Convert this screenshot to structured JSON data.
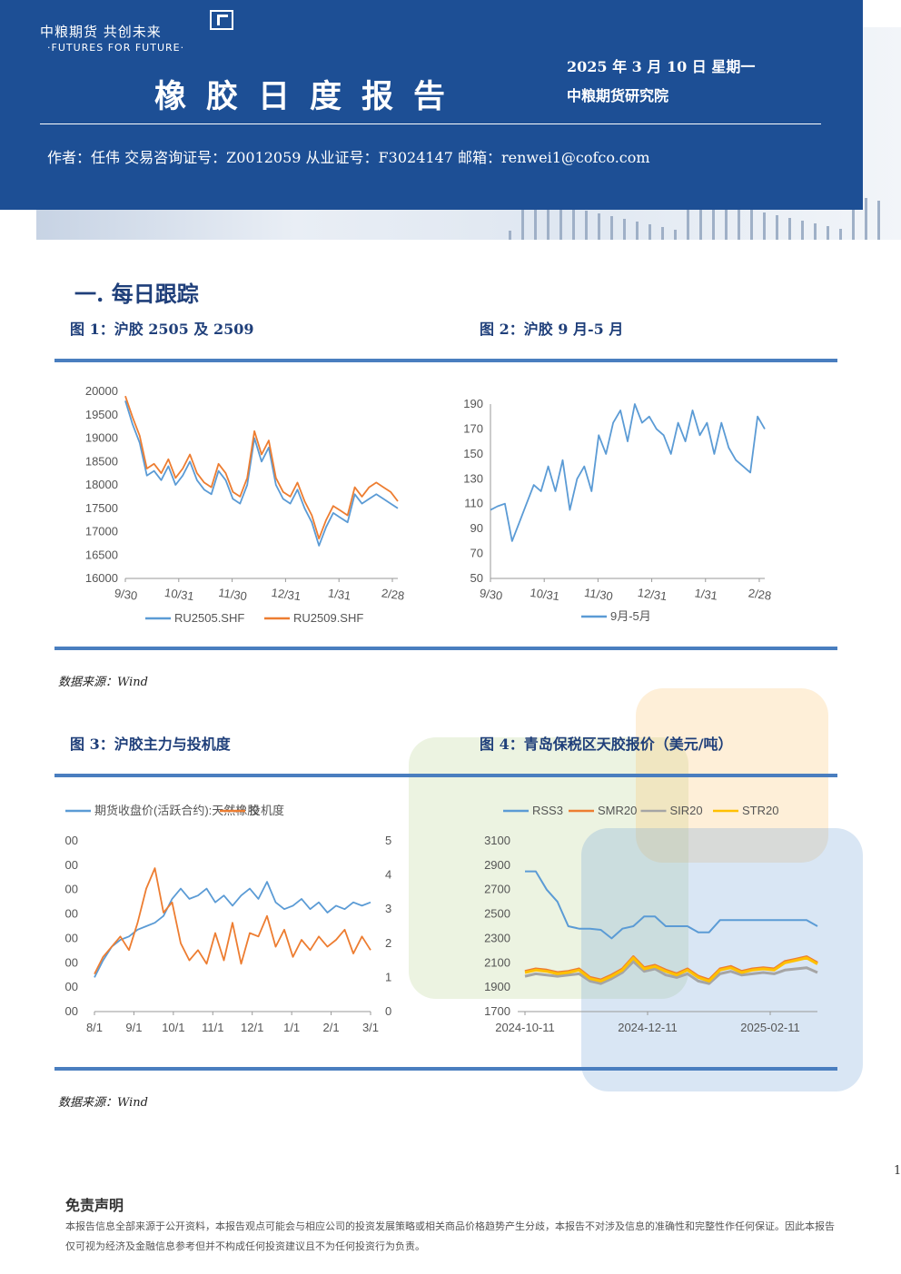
{
  "header": {
    "logo_text": "中粮期货 共创未来",
    "logo_sub": "·FUTURES FOR FUTURE·",
    "title": "橡胶日度报告",
    "date": "2025 年 3 月 10 日 星期一",
    "institute": "中粮期货研究院",
    "author_line": "作者：任伟  交易咨询证号：Z0012059  从业证号：F3024147  邮箱：renwei1@cofco.com"
  },
  "section_title": "一. 每日跟踪",
  "figures": {
    "fig1_title": "图 1：沪胶 2505 及 2509",
    "fig2_title": "图 2：沪胶 9 月-5 月",
    "fig3_title": "图 3：沪胶主力与投机度",
    "fig4_title": "图 4：青岛保税区天胶报价（美元/吨）",
    "source1": "数据来源：Wind",
    "source2": "数据来源：Wind"
  },
  "footer": {
    "page_number": "1",
    "disclaimer_title": "免责声明",
    "disclaimer_text": "本报告信息全部来源于公开资料，本报告观点可能会与相应公司的投资发展策略或相关商品价格趋势产生分歧，本报告不对涉及信息的准确性和完整性作任何保证。因此本报告仅可视为经济及金融信息参考但并不构成任何投资建议且不为任何投资行为负责。"
  },
  "chart_data": [
    {
      "type": "line",
      "title": "",
      "x_ticks": [
        "9/30",
        "10/31",
        "11/30",
        "12/31",
        "1/31",
        "2/28"
      ],
      "ylim": [
        16000,
        20000
      ],
      "y_ticks": [
        16000,
        16500,
        17000,
        17500,
        18000,
        18500,
        19000,
        19500,
        20000
      ],
      "legend": "bottom",
      "series": [
        {
          "name": "RU2505.SHF",
          "color": "#5b9bd5",
          "values": [
            19800,
            19300,
            18900,
            18200,
            18300,
            18100,
            18400,
            18000,
            18200,
            18500,
            18100,
            17900,
            17800,
            18300,
            18100,
            17700,
            17600,
            18000,
            19000,
            18500,
            18800,
            18000,
            17700,
            17600,
            17900,
            17500,
            17200,
            16700,
            17100,
            17400,
            17300,
            17200,
            17800,
            17600,
            17700,
            17800,
            17700,
            17600,
            17500
          ]
        },
        {
          "name": "RU2509.SHF",
          "color": "#ed7d31",
          "values": [
            19900,
            19450,
            19050,
            18350,
            18450,
            18250,
            18550,
            18150,
            18350,
            18650,
            18250,
            18050,
            17950,
            18450,
            18250,
            17850,
            17750,
            18150,
            19150,
            18650,
            18950,
            18150,
            17850,
            17750,
            18050,
            17650,
            17350,
            16850,
            17250,
            17550,
            17450,
            17350,
            17950,
            17750,
            17950,
            18050,
            17950,
            17850,
            17650
          ]
        }
      ]
    },
    {
      "type": "line",
      "title": "",
      "x_ticks": [
        "9/30",
        "10/31",
        "11/30",
        "12/31",
        "1/31",
        "2/28"
      ],
      "ylim": [
        50,
        190
      ],
      "y_ticks": [
        50,
        70,
        90,
        110,
        130,
        150,
        170,
        190
      ],
      "legend": "bottom",
      "series": [
        {
          "name": "9月-5月",
          "color": "#5b9bd5",
          "values": [
            105,
            108,
            110,
            80,
            95,
            110,
            125,
            120,
            140,
            120,
            145,
            105,
            130,
            140,
            120,
            165,
            150,
            175,
            185,
            160,
            190,
            175,
            180,
            170,
            165,
            150,
            175,
            160,
            185,
            165,
            175,
            150,
            175,
            155,
            145,
            140,
            135,
            180,
            170
          ]
        }
      ]
    },
    {
      "type": "line",
      "title": "",
      "x_ticks": [
        "8/1",
        "9/1",
        "10/1",
        "11/1",
        "12/1",
        "1/1",
        "2/1",
        "3/1"
      ],
      "y_left_ticks": [
        "00",
        "00",
        "00",
        "00",
        "00",
        "00",
        "00",
        "00"
      ],
      "y_right_lim": [
        0,
        5
      ],
      "y_right_ticks": [
        0,
        1,
        2,
        3,
        4,
        5
      ],
      "legend": "top",
      "series": [
        {
          "name": "期货收盘价(活跃合约):天然橡胶",
          "color": "#5b9bd5",
          "values": [
            1.0,
            1.5,
            1.9,
            2.1,
            2.2,
            2.4,
            2.5,
            2.6,
            2.8,
            3.3,
            3.6,
            3.3,
            3.4,
            3.6,
            3.2,
            3.4,
            3.1,
            3.4,
            3.6,
            3.3,
            3.8,
            3.2,
            3.0,
            3.1,
            3.3,
            3.0,
            3.2,
            2.9,
            3.1,
            3.0,
            3.2,
            3.1,
            3.2
          ]
        },
        {
          "name": "投机度",
          "color": "#ed7d31",
          "values": [
            1.1,
            1.6,
            1.9,
            2.2,
            1.8,
            2.6,
            3.6,
            4.2,
            2.9,
            3.2,
            2.0,
            1.5,
            1.8,
            1.4,
            2.3,
            1.5,
            2.6,
            1.4,
            2.3,
            2.2,
            2.8,
            1.9,
            2.4,
            1.6,
            2.1,
            1.8,
            2.2,
            1.9,
            2.1,
            2.4,
            1.7,
            2.2,
            1.8
          ]
        }
      ]
    },
    {
      "type": "line",
      "title": "",
      "x_ticks": [
        "2024-10-11",
        "2024-12-11",
        "2025-02-11"
      ],
      "ylim": [
        1700,
        3100
      ],
      "y_ticks": [
        1700,
        1900,
        2100,
        2300,
        2500,
        2700,
        2900,
        3100
      ],
      "legend": "top",
      "series": [
        {
          "name": "RSS3",
          "color": "#5b9bd5",
          "values": [
            2850,
            2850,
            2700,
            2600,
            2400,
            2380,
            2380,
            2370,
            2300,
            2380,
            2400,
            2480,
            2480,
            2400,
            2400,
            2400,
            2350,
            2350,
            2450,
            2450,
            2450,
            2450,
            2450,
            2450,
            2450,
            2450,
            2450,
            2400
          ]
        },
        {
          "name": "SMR20",
          "color": "#ed7d31",
          "values": [
            2030,
            2050,
            2040,
            2020,
            2030,
            2050,
            1980,
            1960,
            2000,
            2050,
            2150,
            2060,
            2080,
            2040,
            2010,
            2050,
            1990,
            1960,
            2050,
            2070,
            2030,
            2050,
            2060,
            2050,
            2110,
            2130,
            2150,
            2100
          ]
        },
        {
          "name": "SIR20",
          "color": "#a5a5a5",
          "values": [
            1990,
            2010,
            2000,
            1990,
            2000,
            2010,
            1950,
            1930,
            1970,
            2020,
            2110,
            2030,
            2050,
            2000,
            1980,
            2010,
            1950,
            1930,
            2010,
            2030,
            2000,
            2010,
            2020,
            2010,
            2040,
            2050,
            2060,
            2020
          ]
        },
        {
          "name": "STR20",
          "color": "#ffc000",
          "values": [
            2020,
            2040,
            2030,
            2010,
            2020,
            2040,
            1970,
            1950,
            1990,
            2040,
            2140,
            2050,
            2070,
            2030,
            2000,
            2040,
            1980,
            1950,
            2040,
            2060,
            2020,
            2040,
            2050,
            2040,
            2100,
            2120,
            2140,
            2090
          ]
        }
      ]
    }
  ]
}
